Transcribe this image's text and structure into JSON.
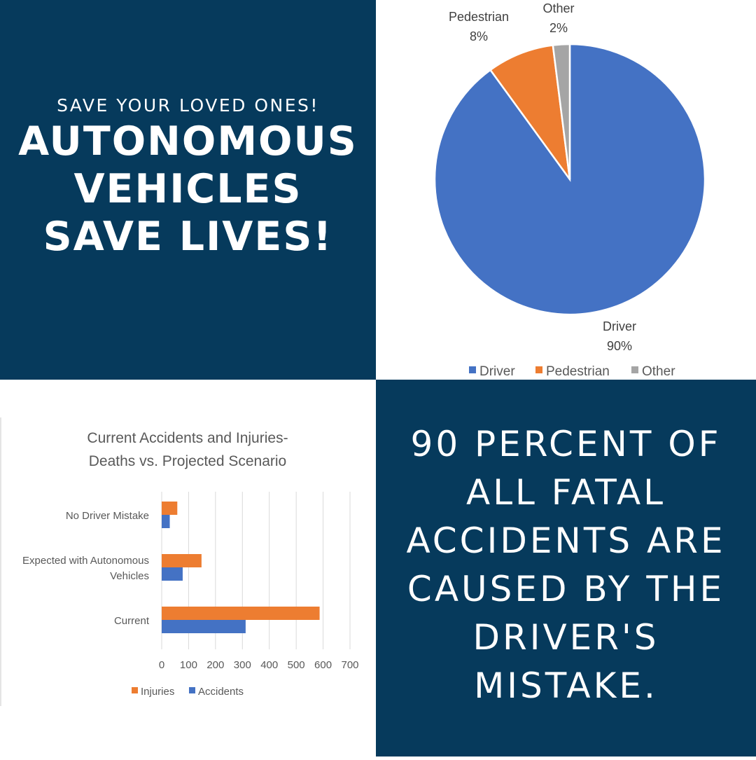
{
  "left_poster": {
    "tagline": "SAVE YOUR LOVED ONES!",
    "headline_lines": [
      "AUTONOMOUS",
      "VEHICLES",
      "SAVE LIVES!"
    ]
  },
  "right_poster": {
    "statement_lines": [
      "90 PERCENT OF",
      "ALL FATAL",
      "ACCIDENTS ARE",
      "CAUSED BY THE",
      "DRIVER'S",
      "MISTAKE."
    ]
  },
  "colors": {
    "navy": "#063a5c",
    "driver_blue": "#4472c4",
    "pedestrian_orange": "#ed7d31",
    "other_gray": "#a5a5a5"
  },
  "chart_data": [
    {
      "type": "pie",
      "title": "",
      "slices": [
        {
          "label": "Driver",
          "value": 90,
          "value_label": "90%",
          "color": "#4472c4"
        },
        {
          "label": "Pedestrian",
          "value": 8,
          "value_label": "8%",
          "color": "#ed7d31"
        },
        {
          "label": "Other",
          "value": 2,
          "value_label": "2%",
          "color": "#a5a5a5"
        }
      ],
      "legend": [
        "Driver",
        "Pedestrian",
        "Other"
      ],
      "legend_position": "bottom"
    },
    {
      "type": "bar",
      "orientation": "horizontal",
      "title_lines": [
        "Current Accidents and Injuries-",
        "Deaths vs. Projected Scenario"
      ],
      "categories": [
        {
          "lines": [
            "No Driver Mistake"
          ]
        },
        {
          "lines": [
            "Expected with Autonomous",
            "Vehicles"
          ]
        },
        {
          "lines": [
            "Current"
          ]
        }
      ],
      "series": [
        {
          "name": "Injuries",
          "color": "#ed7d31",
          "values": [
            58,
            148,
            587
          ]
        },
        {
          "name": "Accidents",
          "color": "#4472c4",
          "values": [
            30,
            78,
            312
          ]
        }
      ],
      "xlim": [
        0,
        700
      ],
      "xticks": [
        "0",
        "100",
        "200",
        "300",
        "400",
        "500",
        "600",
        "700"
      ],
      "grid": true,
      "legend_position": "bottom"
    }
  ]
}
